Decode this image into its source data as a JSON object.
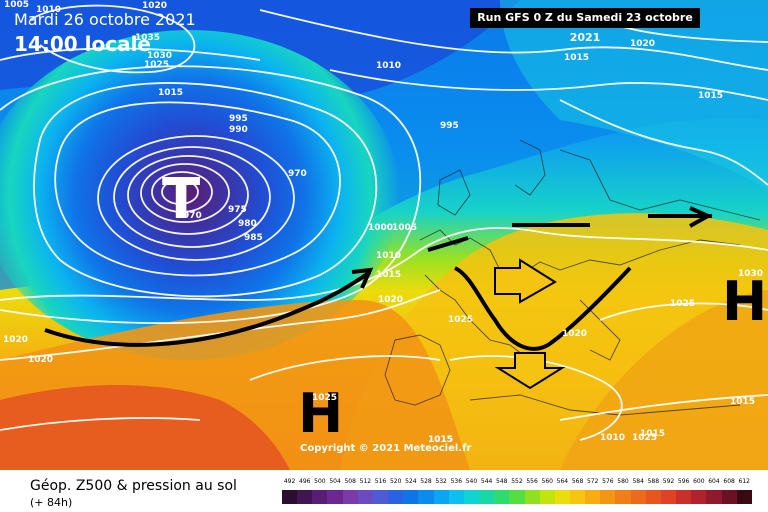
{
  "header": {
    "run": "Run GFS 0 Z du Samedi 23 octobre 2021",
    "date": "Mardi 26 octobre 2021",
    "time": "14:00 locale"
  },
  "copyright": "Copyright © 2021 Meteociel.fr",
  "footer": {
    "title": "Géop. Z500 & pression au sol",
    "subtitle": "(+ 84h)"
  },
  "pressure_labels": [
    "1005",
    "1020",
    "1010",
    "1035",
    "1030",
    "1025",
    "1015",
    "1010",
    "995",
    "990",
    "1015",
    "1020",
    "1015",
    "995",
    "970",
    "975",
    "970",
    "980",
    "985",
    "1000",
    "1005",
    "1010",
    "1015",
    "1020",
    "1025",
    "1020",
    "1020",
    "1030",
    "1025",
    "1025",
    "1015",
    "1015",
    "1010",
    "1015",
    "1020",
    "1025",
    "1015"
  ],
  "centers": {
    "low": "T",
    "high_west": "H",
    "high_east": "H"
  },
  "legend": {
    "values": [
      "492",
      "496",
      "500",
      "504",
      "508",
      "512",
      "516",
      "520",
      "524",
      "528",
      "532",
      "536",
      "540",
      "544",
      "548",
      "552",
      "556",
      "560",
      "564",
      "568",
      "572",
      "576",
      "580",
      "584",
      "588",
      "592",
      "596",
      "600",
      "604",
      "608",
      "612"
    ],
    "colors": [
      "#2b0d2f",
      "#3f1650",
      "#5a1d74",
      "#6d2790",
      "#7b3aa8",
      "#6a4cc0",
      "#4e5bd4",
      "#2a63df",
      "#0f74e8",
      "#0a8cef",
      "#0aa6f2",
      "#0bc0ee",
      "#12d3d4",
      "#1ad8a6",
      "#2ddb6e",
      "#55de42",
      "#8ee021",
      "#c2e40e",
      "#ecdc0c",
      "#f7c40f",
      "#f6ad12",
      "#f29614",
      "#ef7f18",
      "#ea6b1c",
      "#e55620",
      "#df4225",
      "#c9302a",
      "#b1222d",
      "#8f1a2b",
      "#6a1224",
      "#3a0a14"
    ]
  }
}
